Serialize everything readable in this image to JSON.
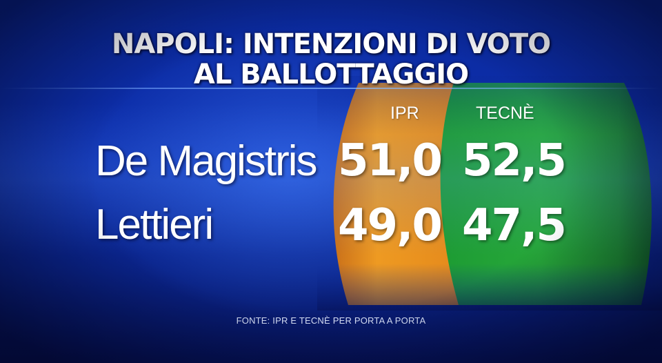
{
  "colors": {
    "background": "#0d2fae",
    "ipr_panel": "#e8901e",
    "tecne_panel": "#23a336",
    "text": "#ffffff"
  },
  "header": {
    "title_line1": "NAPOLI: INTENZIONI DI VOTO",
    "title_line2": "AL BALLOTTAGGIO"
  },
  "footer": {
    "source": "FONTE: IPR E TECNÈ PER PORTA A PORTA"
  },
  "chart_data": {
    "type": "table",
    "title": "NAPOLI: INTENZIONI DI VOTO AL BALLOTTAGGIO",
    "columns": [
      "IPR",
      "TECNÈ"
    ],
    "rows": [
      {
        "label": "De Magistris",
        "values": [
          "51,0",
          "52,5"
        ]
      },
      {
        "label": "Lettieri",
        "values": [
          "49,0",
          "47,5"
        ]
      }
    ],
    "source": "FONTE: IPR E TECNÈ PER PORTA A PORTA"
  }
}
